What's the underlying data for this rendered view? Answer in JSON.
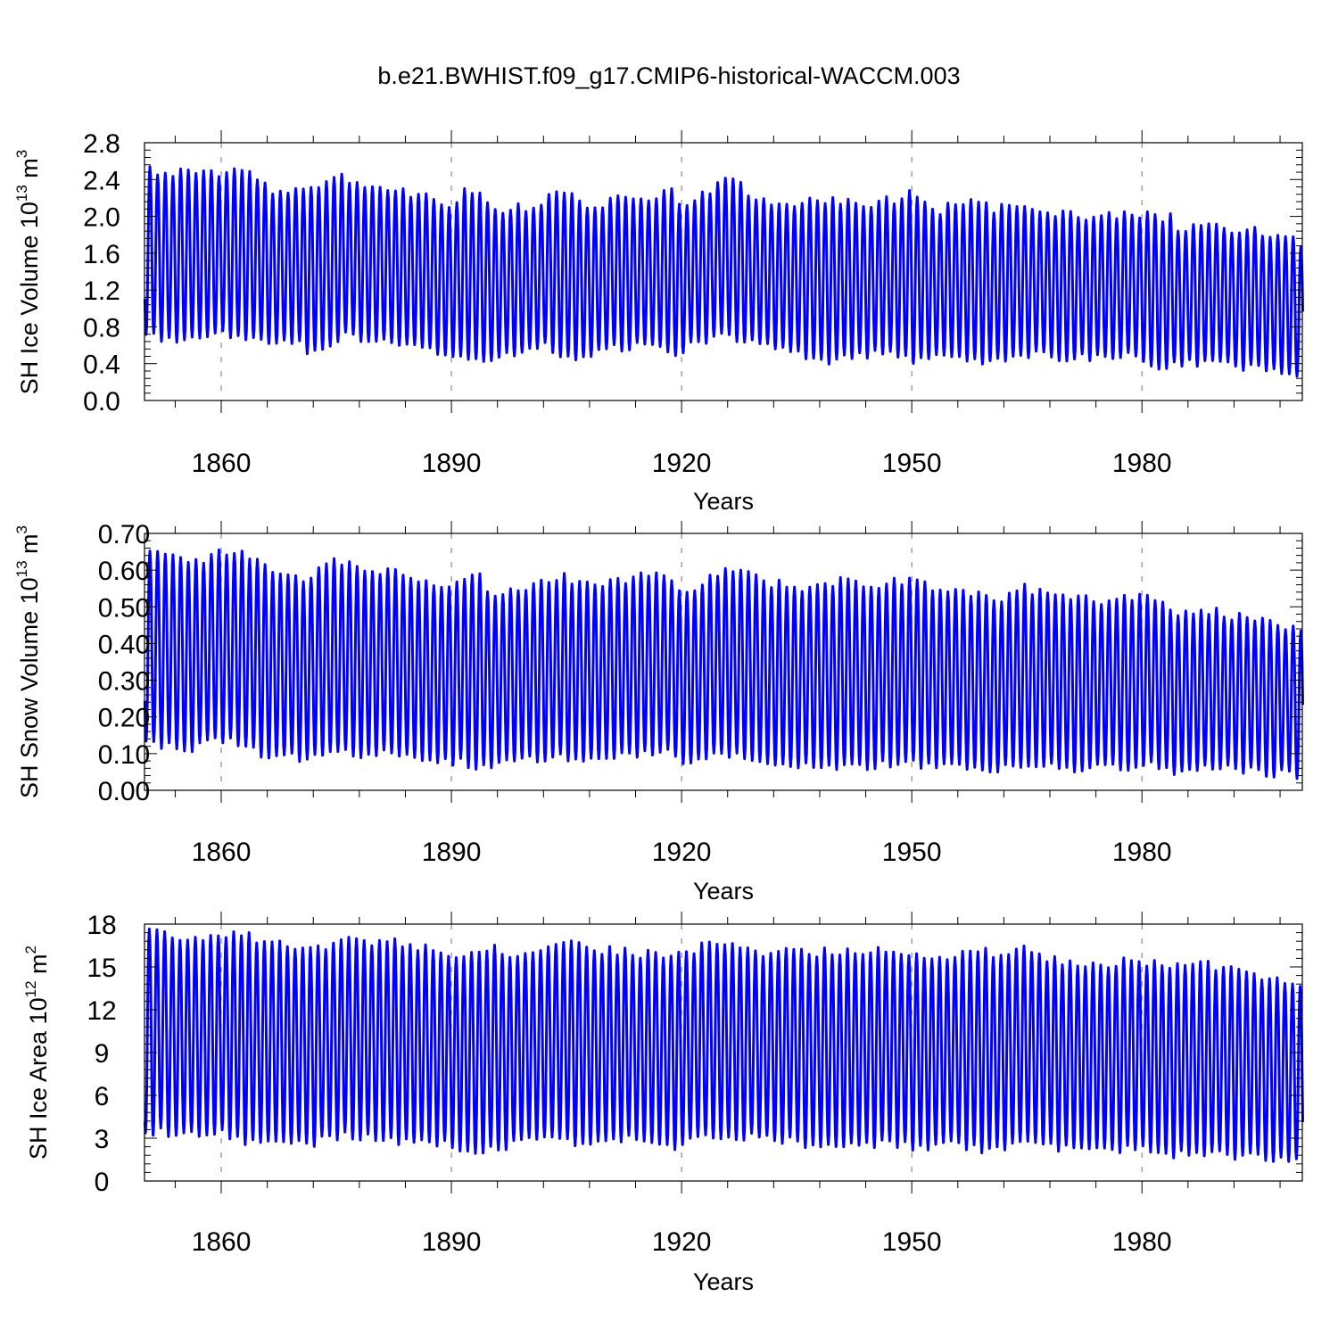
{
  "title": "b.e21.BWHIST.f09_g17.CMIP6-historical-WACCM.003",
  "chart_data": [
    {
      "type": "line",
      "name": "ice-volume",
      "ylabel": "SH Ice Volume 10",
      "ylabel_exp": "13",
      "ylabel_unit": " m",
      "ylabel_unit_exp": "3",
      "xlabel": "Years",
      "xlim": [
        1850,
        2000.9
      ],
      "ylim": [
        0,
        2.8
      ],
      "xticks": [
        1860,
        1890,
        1920,
        1950,
        1980
      ],
      "xtick_labels": [
        "1860",
        "1890",
        "1920",
        "1950",
        "1980"
      ],
      "yticks": [
        0,
        0.4,
        0.8,
        1.2,
        1.6,
        2.0,
        2.4,
        2.8
      ],
      "ytick_labels": [
        "0.0",
        "0.4",
        "0.8",
        "1.2",
        "1.6",
        "2.0",
        "2.4",
        "2.8"
      ],
      "line_color": "#0000ff",
      "seasonal_cycle": {
        "start_year": 1850,
        "end_year": 2000,
        "max_month": 9,
        "min_month": 3
      },
      "max_anchors": [
        [
          1850,
          2.5
        ],
        [
          1856,
          2.45
        ],
        [
          1860,
          2.5
        ],
        [
          1863,
          2.45
        ],
        [
          1866,
          2.28
        ],
        [
          1870,
          2.25
        ],
        [
          1874,
          2.45
        ],
        [
          1877,
          2.4
        ],
        [
          1880,
          2.3
        ],
        [
          1885,
          2.25
        ],
        [
          1889,
          2.15
        ],
        [
          1892,
          2.3
        ],
        [
          1895,
          2.05
        ],
        [
          1899,
          2.1
        ],
        [
          1904,
          2.25
        ],
        [
          1908,
          2.1
        ],
        [
          1912,
          2.2
        ],
        [
          1918,
          2.25
        ],
        [
          1920,
          2.1
        ],
        [
          1924,
          2.35
        ],
        [
          1926,
          2.38
        ],
        [
          1930,
          2.15
        ],
        [
          1935,
          2.15
        ],
        [
          1940,
          2.15
        ],
        [
          1945,
          2.15
        ],
        [
          1950,
          2.25
        ],
        [
          1952,
          2.05
        ],
        [
          1956,
          2.15
        ],
        [
          1960,
          2.08
        ],
        [
          1964,
          2.15
        ],
        [
          1968,
          2.05
        ],
        [
          1972,
          2.0
        ],
        [
          1976,
          2.0
        ],
        [
          1980,
          2.02
        ],
        [
          1983,
          1.98
        ],
        [
          1984,
          1.85
        ],
        [
          1988,
          1.92
        ],
        [
          1992,
          1.85
        ],
        [
          1996,
          1.82
        ],
        [
          2000,
          1.72
        ]
      ],
      "min_anchors": [
        [
          1850,
          0.7
        ],
        [
          1856,
          0.65
        ],
        [
          1860,
          0.72
        ],
        [
          1866,
          0.62
        ],
        [
          1870,
          0.6
        ],
        [
          1872,
          0.5
        ],
        [
          1876,
          0.7
        ],
        [
          1880,
          0.65
        ],
        [
          1885,
          0.6
        ],
        [
          1889,
          0.5
        ],
        [
          1892,
          0.45
        ],
        [
          1895,
          0.42
        ],
        [
          1898,
          0.5
        ],
        [
          1902,
          0.6
        ],
        [
          1905,
          0.45
        ],
        [
          1910,
          0.55
        ],
        [
          1915,
          0.6
        ],
        [
          1919,
          0.5
        ],
        [
          1922,
          0.65
        ],
        [
          1926,
          0.7
        ],
        [
          1930,
          0.6
        ],
        [
          1935,
          0.5
        ],
        [
          1938,
          0.42
        ],
        [
          1942,
          0.5
        ],
        [
          1946,
          0.5
        ],
        [
          1950,
          0.45
        ],
        [
          1955,
          0.5
        ],
        [
          1959,
          0.42
        ],
        [
          1963,
          0.45
        ],
        [
          1967,
          0.5
        ],
        [
          1971,
          0.45
        ],
        [
          1975,
          0.48
        ],
        [
          1979,
          0.48
        ],
        [
          1982,
          0.35
        ],
        [
          1985,
          0.4
        ],
        [
          1990,
          0.4
        ],
        [
          1995,
          0.35
        ],
        [
          2000,
          0.3
        ]
      ]
    },
    {
      "type": "line",
      "name": "snow-volume",
      "ylabel": "SH Snow Volume 10",
      "ylabel_exp": "13",
      "ylabel_unit": " m",
      "ylabel_unit_exp": "3",
      "xlabel": "Years",
      "xlim": [
        1850,
        2000.9
      ],
      "ylim": [
        0,
        0.7
      ],
      "xticks": [
        1860,
        1890,
        1920,
        1950,
        1980
      ],
      "xtick_labels": [
        "1860",
        "1890",
        "1920",
        "1950",
        "1980"
      ],
      "yticks": [
        0,
        0.1,
        0.2,
        0.3,
        0.4,
        0.5,
        0.6,
        0.7
      ],
      "ytick_labels": [
        "0.00",
        "0.10",
        "0.20",
        "0.30",
        "0.40",
        "0.50",
        "0.60",
        "0.70"
      ],
      "line_color": "#0000ff",
      "seasonal_cycle": {
        "start_year": 1850,
        "end_year": 2000,
        "max_month": 9,
        "min_month": 3
      },
      "max_anchors": [
        [
          1850,
          0.66
        ],
        [
          1856,
          0.62
        ],
        [
          1860,
          0.65
        ],
        [
          1863,
          0.64
        ],
        [
          1866,
          0.6
        ],
        [
          1870,
          0.57
        ],
        [
          1874,
          0.64
        ],
        [
          1877,
          0.6
        ],
        [
          1880,
          0.6
        ],
        [
          1885,
          0.58
        ],
        [
          1889,
          0.55
        ],
        [
          1892,
          0.6
        ],
        [
          1895,
          0.53
        ],
        [
          1900,
          0.56
        ],
        [
          1904,
          0.58
        ],
        [
          1908,
          0.56
        ],
        [
          1912,
          0.57
        ],
        [
          1916,
          0.6
        ],
        [
          1920,
          0.53
        ],
        [
          1923,
          0.58
        ],
        [
          1926,
          0.61
        ],
        [
          1930,
          0.57
        ],
        [
          1935,
          0.55
        ],
        [
          1940,
          0.57
        ],
        [
          1945,
          0.56
        ],
        [
          1950,
          0.58
        ],
        [
          1952,
          0.53
        ],
        [
          1956,
          0.55
        ],
        [
          1960,
          0.52
        ],
        [
          1964,
          0.55
        ],
        [
          1968,
          0.53
        ],
        [
          1972,
          0.52
        ],
        [
          1976,
          0.52
        ],
        [
          1980,
          0.53
        ],
        [
          1984,
          0.48
        ],
        [
          1988,
          0.49
        ],
        [
          1992,
          0.47
        ],
        [
          1996,
          0.47
        ],
        [
          2000,
          0.43
        ]
      ],
      "min_anchors": [
        [
          1850,
          0.13
        ],
        [
          1855,
          0.11
        ],
        [
          1860,
          0.14
        ],
        [
          1865,
          0.1
        ],
        [
          1870,
          0.09
        ],
        [
          1875,
          0.1
        ],
        [
          1880,
          0.1
        ],
        [
          1885,
          0.09
        ],
        [
          1890,
          0.08
        ],
        [
          1894,
          0.06
        ],
        [
          1898,
          0.08
        ],
        [
          1903,
          0.09
        ],
        [
          1908,
          0.08
        ],
        [
          1913,
          0.1
        ],
        [
          1918,
          0.11
        ],
        [
          1920,
          0.07
        ],
        [
          1925,
          0.1
        ],
        [
          1930,
          0.08
        ],
        [
          1935,
          0.07
        ],
        [
          1940,
          0.06
        ],
        [
          1945,
          0.07
        ],
        [
          1950,
          0.07
        ],
        [
          1955,
          0.07
        ],
        [
          1960,
          0.05
        ],
        [
          1965,
          0.07
        ],
        [
          1970,
          0.06
        ],
        [
          1975,
          0.06
        ],
        [
          1980,
          0.07
        ],
        [
          1984,
          0.05
        ],
        [
          1990,
          0.06
        ],
        [
          1995,
          0.05
        ],
        [
          2000,
          0.04
        ]
      ]
    },
    {
      "type": "line",
      "name": "ice-area",
      "ylabel": "SH Ice Area 10",
      "ylabel_exp": "12",
      "ylabel_unit": " m",
      "ylabel_unit_exp": "2",
      "xlabel": "Years",
      "xlim": [
        1850,
        2000.9
      ],
      "ylim": [
        0,
        18
      ],
      "xticks": [
        1860,
        1890,
        1920,
        1950,
        1980
      ],
      "xtick_labels": [
        "1860",
        "1890",
        "1920",
        "1950",
        "1980"
      ],
      "yticks": [
        0,
        3,
        6,
        9,
        12,
        15,
        18
      ],
      "ytick_labels": [
        "0",
        "3",
        "6",
        "9",
        "12",
        "15",
        "18"
      ],
      "line_color": "#0000ff",
      "seasonal_cycle": {
        "start_year": 1850,
        "end_year": 2000,
        "max_month": 8,
        "min_month": 2
      },
      "max_anchors": [
        [
          1850,
          17.6
        ],
        [
          1856,
          17.0
        ],
        [
          1860,
          17.2
        ],
        [
          1864,
          17.0
        ],
        [
          1868,
          16.5
        ],
        [
          1872,
          16.2
        ],
        [
          1876,
          16.9
        ],
        [
          1880,
          16.8
        ],
        [
          1885,
          16.4
        ],
        [
          1890,
          16.0
        ],
        [
          1895,
          16.3
        ],
        [
          1898,
          15.8
        ],
        [
          1902,
          16.4
        ],
        [
          1906,
          16.5
        ],
        [
          1910,
          16.1
        ],
        [
          1915,
          15.9
        ],
        [
          1920,
          16.0
        ],
        [
          1924,
          16.7
        ],
        [
          1926,
          16.8
        ],
        [
          1930,
          16.1
        ],
        [
          1935,
          16.0
        ],
        [
          1940,
          16.0
        ],
        [
          1944,
          16.3
        ],
        [
          1948,
          16.2
        ],
        [
          1951,
          15.5
        ],
        [
          1955,
          15.9
        ],
        [
          1960,
          16.0
        ],
        [
          1964,
          16.2
        ],
        [
          1968,
          15.5
        ],
        [
          1972,
          15.3
        ],
        [
          1976,
          15.3
        ],
        [
          1980,
          15.3
        ],
        [
          1984,
          15.0
        ],
        [
          1988,
          15.3
        ],
        [
          1991,
          14.7
        ],
        [
          1996,
          14.4
        ],
        [
          2000,
          14.0
        ]
      ],
      "min_anchors": [
        [
          1850,
          3.5
        ],
        [
          1855,
          3.3
        ],
        [
          1860,
          3.3
        ],
        [
          1864,
          2.6
        ],
        [
          1868,
          3.0
        ],
        [
          1872,
          2.7
        ],
        [
          1876,
          3.3
        ],
        [
          1880,
          2.9
        ],
        [
          1885,
          2.7
        ],
        [
          1890,
          2.5
        ],
        [
          1894,
          2.0
        ],
        [
          1898,
          2.6
        ],
        [
          1902,
          3.0
        ],
        [
          1906,
          2.7
        ],
        [
          1910,
          3.0
        ],
        [
          1915,
          3.0
        ],
        [
          1919,
          2.3
        ],
        [
          1922,
          3.0
        ],
        [
          1926,
          3.1
        ],
        [
          1930,
          3.0
        ],
        [
          1935,
          2.8
        ],
        [
          1938,
          2.2
        ],
        [
          1942,
          2.7
        ],
        [
          1946,
          2.6
        ],
        [
          1950,
          2.4
        ],
        [
          1955,
          2.6
        ],
        [
          1960,
          2.0
        ],
        [
          1964,
          2.5
        ],
        [
          1968,
          2.4
        ],
        [
          1972,
          2.2
        ],
        [
          1976,
          2.3
        ],
        [
          1980,
          2.2
        ],
        [
          1984,
          1.8
        ],
        [
          1988,
          2.0
        ],
        [
          1992,
          1.8
        ],
        [
          1996,
          1.7
        ],
        [
          2000,
          1.4
        ]
      ]
    }
  ]
}
